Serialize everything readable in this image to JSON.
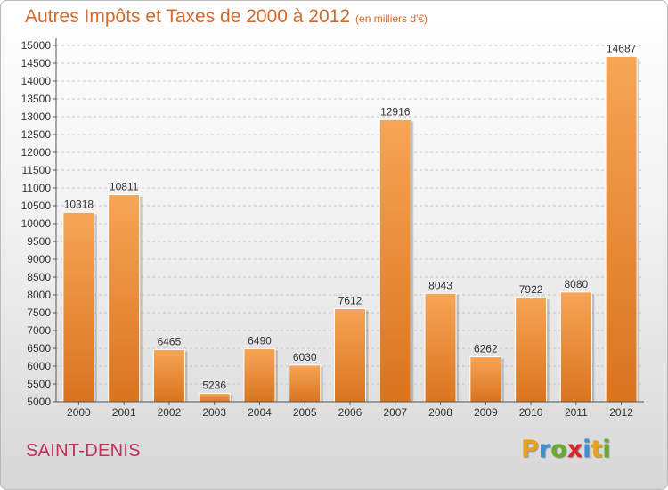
{
  "header": {
    "title": "Autres Impôts et Taxes de 2000 à 2012",
    "subtitle": "(en milliers d'€)"
  },
  "footer": {
    "place": "SAINT-DENIS",
    "logo_letters": [
      {
        "ch": "P",
        "color": "#e8a21a"
      },
      {
        "ch": "r",
        "color": "#3d8fd0"
      },
      {
        "ch": "o",
        "color": "#6aab2e"
      },
      {
        "ch": "x",
        "color": "#d8262f"
      },
      {
        "ch": "i",
        "color": "#3d8fd0"
      },
      {
        "ch": "t",
        "color": "#e8a21a"
      },
      {
        "ch": "i",
        "color": "#6aab2e"
      }
    ]
  },
  "colors": {
    "title": "#d26a2b",
    "bar_light": "#f6a556",
    "bar_dark": "#d9741f",
    "grid": "#c6c6c6",
    "place": "#c0305a"
  },
  "chart_data": {
    "type": "bar",
    "categories": [
      "2000",
      "2001",
      "2002",
      "2003",
      "2004",
      "2005",
      "2006",
      "2007",
      "2008",
      "2009",
      "2010",
      "2011",
      "2012"
    ],
    "values": [
      10318,
      10811,
      6465,
      5236,
      6490,
      6030,
      7612,
      12916,
      8043,
      6262,
      7922,
      8080,
      14687
    ],
    "data_labels": [
      "10318",
      "10811",
      "6465",
      "5236",
      "6490",
      "6030",
      "7612",
      "12916",
      "8043",
      "6262",
      "7922",
      "8080",
      "14687"
    ],
    "ylim": [
      5000,
      15000
    ],
    "yticks": [
      5000,
      5500,
      6000,
      6500,
      7000,
      7500,
      8000,
      8500,
      9000,
      9500,
      10000,
      10500,
      11000,
      11500,
      12000,
      12500,
      13000,
      13500,
      14000,
      14500,
      15000
    ],
    "grid": true,
    "title": "Autres Impôts et Taxes de 2000 à 2012",
    "xlabel": "",
    "ylabel": ""
  }
}
